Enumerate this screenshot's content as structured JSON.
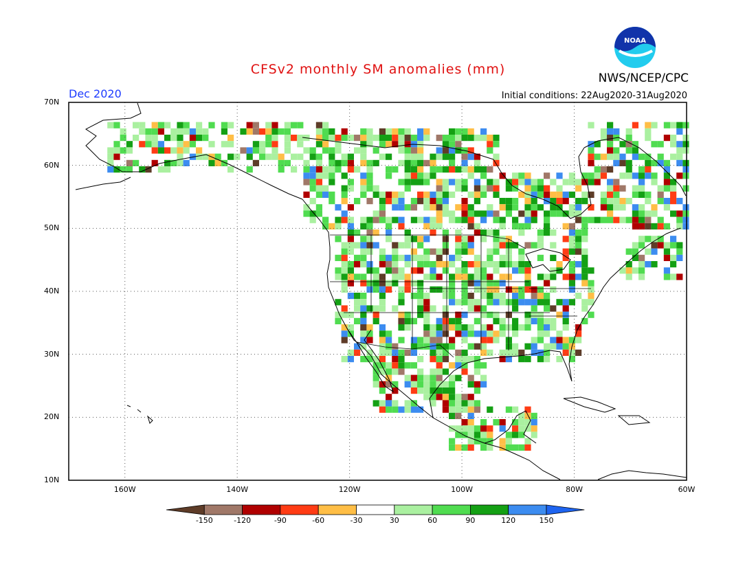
{
  "header": {
    "title": "CFSv2 monthly SM anomalies (mm)",
    "organization": "NWS/NCEP/CPC",
    "valid_month": "Dec 2020",
    "initial_conditions": "Initial conditions: 22Aug2020-31Aug2020",
    "logo_text": "NOAA"
  },
  "map": {
    "lat_labels": [
      "70N",
      "60N",
      "50N",
      "40N",
      "30N",
      "20N",
      "10N"
    ],
    "lon_labels": [
      "160W",
      "140W",
      "120W",
      "100W",
      "80W",
      "60W"
    ],
    "lat_range": [
      10,
      70
    ],
    "lon_range": [
      -170,
      -60
    ],
    "grid": "dotted",
    "basemap": "North America coastlines, US state and Canada provincial boundaries"
  },
  "colorbar": {
    "ticks": [
      "-150",
      "-120",
      "-90",
      "-60",
      "-30",
      "30",
      "60",
      "90",
      "120",
      "150"
    ],
    "colors": [
      "#5e3c28",
      "#a07868",
      "#b00000",
      "#ff3c14",
      "#ffbe46",
      "#ffffff",
      "#aaf0a0",
      "#50dc50",
      "#14a014",
      "#3c8cf0",
      "#1e64f0"
    ],
    "orientation": "horizontal",
    "extends": "both"
  }
}
